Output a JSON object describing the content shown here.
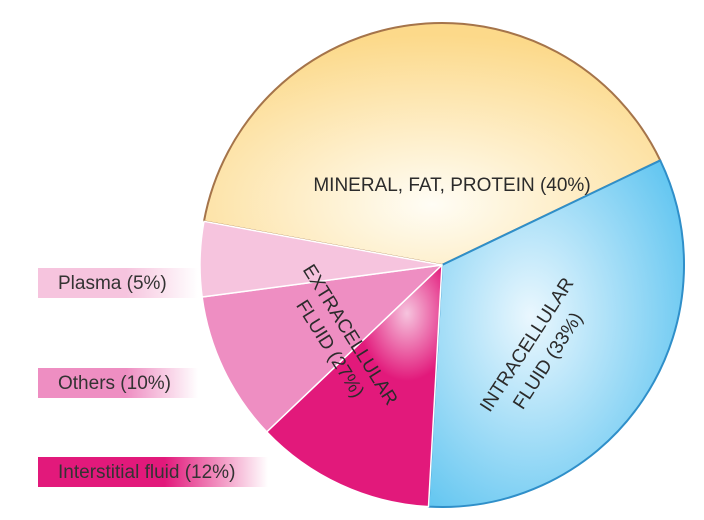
{
  "chart_data": {
    "type": "pie",
    "slices": [
      {
        "label": "MINERAL, FAT, PROTEIN (40%)",
        "value": 40,
        "color": "#fcd98a"
      },
      {
        "label": "INTRACELLULAR FLUID (33%)",
        "value": 33,
        "color": "#72ccf2"
      },
      {
        "label": "Interstitial fluid (12%)",
        "value": 12,
        "color": "#e2197b"
      },
      {
        "label": "Others (10%)",
        "value": 10,
        "color": "#ee8ec2"
      },
      {
        "label": "Plasma (5%)",
        "value": 5,
        "color": "#f6c4de"
      }
    ],
    "group_label": {
      "lines": [
        "EXTRACELLULAR",
        "FLUID (27%)"
      ]
    },
    "slice_text": {
      "mineral": "MINERAL, FAT, PROTEIN (40%)",
      "intracellular": [
        "INTRACELLULAR",
        "FLUID (33%)"
      ]
    },
    "legend": [
      {
        "label": "Plasma (5%)",
        "color": "#f6c4de"
      },
      {
        "label": "Others (10%)",
        "color": "#ee8ec2"
      },
      {
        "label": "Interstitial fluid (12%)",
        "color": "#e2197b"
      }
    ]
  }
}
